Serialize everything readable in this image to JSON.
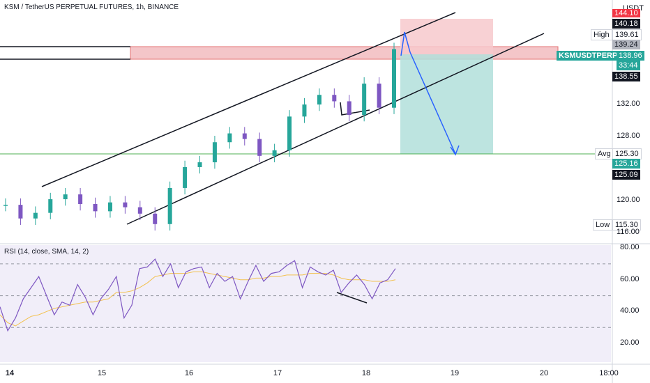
{
  "header": {
    "title": "KSM / TetherUS PERPETUAL FUTURES, 1h, BINANCE",
    "currency": "USDT"
  },
  "rsi": {
    "title": "RSI (14, close, SMA, 14, 2)"
  },
  "price_labels": {
    "top_red": "144.10",
    "level_1": "140.18",
    "high_tag": "High",
    "high_value": "139.61",
    "level_2": "139.24",
    "symbol": "KSMUSDTPERP",
    "current": "138.96",
    "countdown": "33:44",
    "level_3": "138.55",
    "avg_tag": "Avg",
    "avg_value": "125.30",
    "level_4": "125.16",
    "level_5": "125.09",
    "low_tag": "Low",
    "low_value": "115.30"
  },
  "colors": {
    "up": "#26a69a",
    "down": "#7e57c2",
    "stop_zone": "#f7c9cc",
    "target_zone": "#b2dfdb",
    "resistance_zone": "#f4c6c9",
    "rsi_line": "#7e57c2",
    "rsi_sma": "#f2c14e",
    "arrow": "#2962ff",
    "avg_line": "#4caf50"
  },
  "chart_data": {
    "type": "line",
    "title": "KSM / TetherUS PERPETUAL FUTURES, 1h, BINANCE",
    "xlabel": "",
    "ylabel": "",
    "x_ticks": [
      "14",
      "15",
      "16",
      "17",
      "18",
      "19",
      "20",
      "18:00"
    ],
    "y_ticks": [
      116,
      120,
      124,
      128,
      132
    ],
    "y_tick_labels": [
      "116.00",
      "120.00",
      "",
      "128.00",
      "132.00"
    ],
    "ylim": [
      115,
      144.5
    ],
    "series": [
      {
        "x": [
          "13 20:00",
          "14 00:00",
          "14 04:00",
          "14 08:00",
          "14 12:00",
          "14 16:00",
          "14 20:00",
          "15 00:00",
          "15 04:00",
          "15 08:00",
          "15 12:00",
          "15 16:00",
          "15 20:00",
          "16 00:00",
          "16 04:00",
          "16 08:00",
          "16 12:00",
          "16 16:00",
          "16 20:00",
          "17 00:00",
          "17 04:00",
          "17 08:00",
          "17 12:00",
          "17 16:00",
          "17 20:00",
          "18 00:00",
          "18 04:00"
        ],
        "values": [
          119.5,
          117.8,
          118.5,
          120.2,
          120.8,
          119.6,
          118.7,
          119.8,
          119.2,
          118.4,
          117.1,
          121.6,
          124.2,
          124.8,
          127.3,
          128.4,
          127.7,
          125.6,
          126.3,
          130.5,
          132.0,
          133.2,
          132.4,
          130.7,
          134.6,
          131.6,
          138.9
        ]
      }
    ],
    "rsi": {
      "ylim": [
        10,
        80
      ],
      "y_ticks": [
        20,
        40,
        60,
        80
      ],
      "y_tick_labels": [
        "20.00",
        "40.00",
        "60.00",
        "80.00"
      ],
      "values": [
        43,
        28,
        36,
        48,
        55,
        62,
        50,
        38,
        46,
        44,
        57,
        49,
        38,
        48,
        54,
        62,
        36,
        44,
        67,
        68,
        73,
        62,
        70,
        55,
        65,
        67,
        68,
        55,
        64,
        59,
        62,
        48,
        59,
        69,
        59,
        64,
        65,
        69,
        72,
        55,
        68,
        65,
        63,
        66,
        52,
        58,
        63,
        57,
        48,
        58,
        60,
        67
      ],
      "sma": [
        38,
        33,
        31,
        34,
        37,
        38,
        40,
        42,
        43,
        44,
        45,
        46,
        46,
        47,
        48,
        52,
        52,
        53,
        55,
        58,
        62,
        63,
        64,
        64,
        64,
        65,
        65,
        64,
        63,
        62,
        61,
        60,
        60,
        61,
        61,
        62,
        62,
        63,
        63,
        63,
        64,
        64,
        64,
        63,
        61,
        60,
        60,
        60,
        59,
        59,
        59,
        60
      ]
    }
  }
}
